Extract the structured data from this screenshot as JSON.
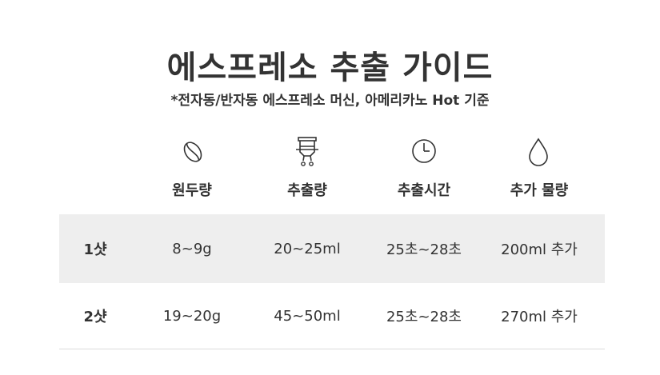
{
  "title": "에스프레소 추출 가이드",
  "subtitle": "*전자동/반자동 에스프레소 머신, 아메리카노 Hot 기준",
  "columns": [
    {
      "icon": "coffee-bean-icon",
      "label": "원두량"
    },
    {
      "icon": "espresso-machine-icon",
      "label": "추출량"
    },
    {
      "icon": "clock-icon",
      "label": "추출시간"
    },
    {
      "icon": "water-drop-icon",
      "label": "추가 물량"
    }
  ],
  "rows": [
    {
      "label": "1샷",
      "values": [
        "8~9g",
        "20~25ml",
        "25초~28초",
        "200ml 추가"
      ]
    },
    {
      "label": "2샷",
      "values": [
        "19~20g",
        "45~50ml",
        "25초~28초",
        "270ml 추가"
      ]
    }
  ]
}
